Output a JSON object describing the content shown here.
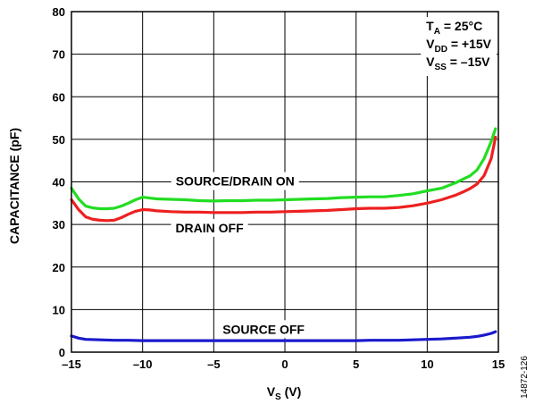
{
  "chart_data": {
    "type": "line",
    "xlabel": {
      "main": "V",
      "sub": "S",
      "rest": " (V)"
    },
    "ylabel": "CAPACITANCE (pF)",
    "xlim": [
      -15,
      15
    ],
    "ylim": [
      0,
      80
    ],
    "xticks": [
      -15,
      -10,
      -5,
      0,
      5,
      10,
      15
    ],
    "xtick_labels": [
      "–15",
      "–10",
      "–5",
      "0",
      "5",
      "10",
      "15"
    ],
    "yticks": [
      0,
      10,
      20,
      30,
      40,
      50,
      60,
      70,
      80
    ],
    "grid": true,
    "series": [
      {
        "name": "SOURCE/DRAIN ON",
        "color": "#22dd22",
        "x": [
          -15,
          -14.5,
          -14,
          -13.5,
          -13,
          -12.5,
          -12,
          -11.5,
          -11,
          -10.5,
          -10,
          -9.5,
          -9,
          -8,
          -7,
          -6,
          -5,
          -4,
          -3,
          -2,
          -1,
          0,
          1,
          2,
          3,
          4,
          5,
          6,
          7,
          8,
          9,
          10,
          11,
          12,
          12.5,
          13,
          13.5,
          14,
          14.5,
          14.8
        ],
        "y": [
          38.5,
          36,
          34.3,
          33.9,
          33.7,
          33.7,
          33.8,
          34.3,
          35.0,
          35.8,
          36.4,
          36.2,
          36.0,
          35.9,
          35.8,
          35.6,
          35.5,
          35.6,
          35.6,
          35.7,
          35.7,
          35.8,
          35.9,
          36.0,
          36.1,
          36.3,
          36.4,
          36.5,
          36.5,
          36.8,
          37.2,
          37.9,
          38.5,
          39.8,
          40.6,
          41.4,
          42.8,
          45.5,
          49.5,
          52.5
        ]
      },
      {
        "name": "DRAIN OFF",
        "color": "#ee2020",
        "x": [
          -15,
          -14.5,
          -14,
          -13.5,
          -13,
          -12.5,
          -12,
          -11.5,
          -11,
          -10.5,
          -10,
          -9.5,
          -9,
          -8,
          -7,
          -6,
          -5,
          -4,
          -3,
          -2,
          -1,
          0,
          1,
          2,
          3,
          4,
          5,
          6,
          7,
          8,
          9,
          10,
          11,
          12,
          12.5,
          13,
          13.5,
          14,
          14.5,
          14.8
        ],
        "y": [
          35.8,
          33.5,
          31.8,
          31.2,
          31.0,
          30.9,
          31.0,
          31.6,
          32.4,
          33.1,
          33.5,
          33.4,
          33.2,
          33.0,
          32.9,
          32.9,
          32.8,
          32.8,
          32.8,
          32.9,
          32.9,
          33.0,
          33.1,
          33.2,
          33.3,
          33.5,
          33.7,
          33.8,
          33.8,
          34.0,
          34.4,
          35.0,
          35.8,
          36.9,
          37.6,
          38.4,
          39.5,
          41.5,
          45.5,
          50.5
        ]
      },
      {
        "name": "SOURCE OFF",
        "color": "#1a1acc",
        "x": [
          -15,
          -14.5,
          -14,
          -13,
          -12,
          -11,
          -10,
          -9,
          -8,
          -7,
          -6,
          -5,
          -4,
          -3,
          -2,
          -1,
          0,
          1,
          2,
          3,
          4,
          5,
          6,
          7,
          8,
          9,
          10,
          11,
          12,
          13,
          13.5,
          14,
          14.5,
          14.8
        ],
        "y": [
          3.8,
          3.3,
          3.0,
          2.9,
          2.8,
          2.8,
          2.7,
          2.7,
          2.7,
          2.7,
          2.7,
          2.7,
          2.7,
          2.7,
          2.7,
          2.7,
          2.7,
          2.7,
          2.7,
          2.7,
          2.7,
          2.7,
          2.8,
          2.8,
          2.8,
          2.9,
          3.0,
          3.1,
          3.3,
          3.5,
          3.7,
          4.0,
          4.4,
          4.8
        ]
      }
    ],
    "series_labels": [
      {
        "text": "SOURCE/DRAIN ON",
        "x": -3.5,
        "y": 40.2
      },
      {
        "text": "DRAIN OFF",
        "x": -5.3,
        "y": 29.2
      },
      {
        "text": "SOURCE OFF",
        "x": -1.5,
        "y": 5.4
      }
    ],
    "conditions": [
      {
        "main": "T",
        "sub": "A",
        "rest": " = 25°C"
      },
      {
        "main": "V",
        "sub": "DD",
        "rest": " = +15V"
      },
      {
        "main": "V",
        "sub": "SS",
        "rest": " = –15V"
      }
    ],
    "figure_id": "14872-126"
  }
}
